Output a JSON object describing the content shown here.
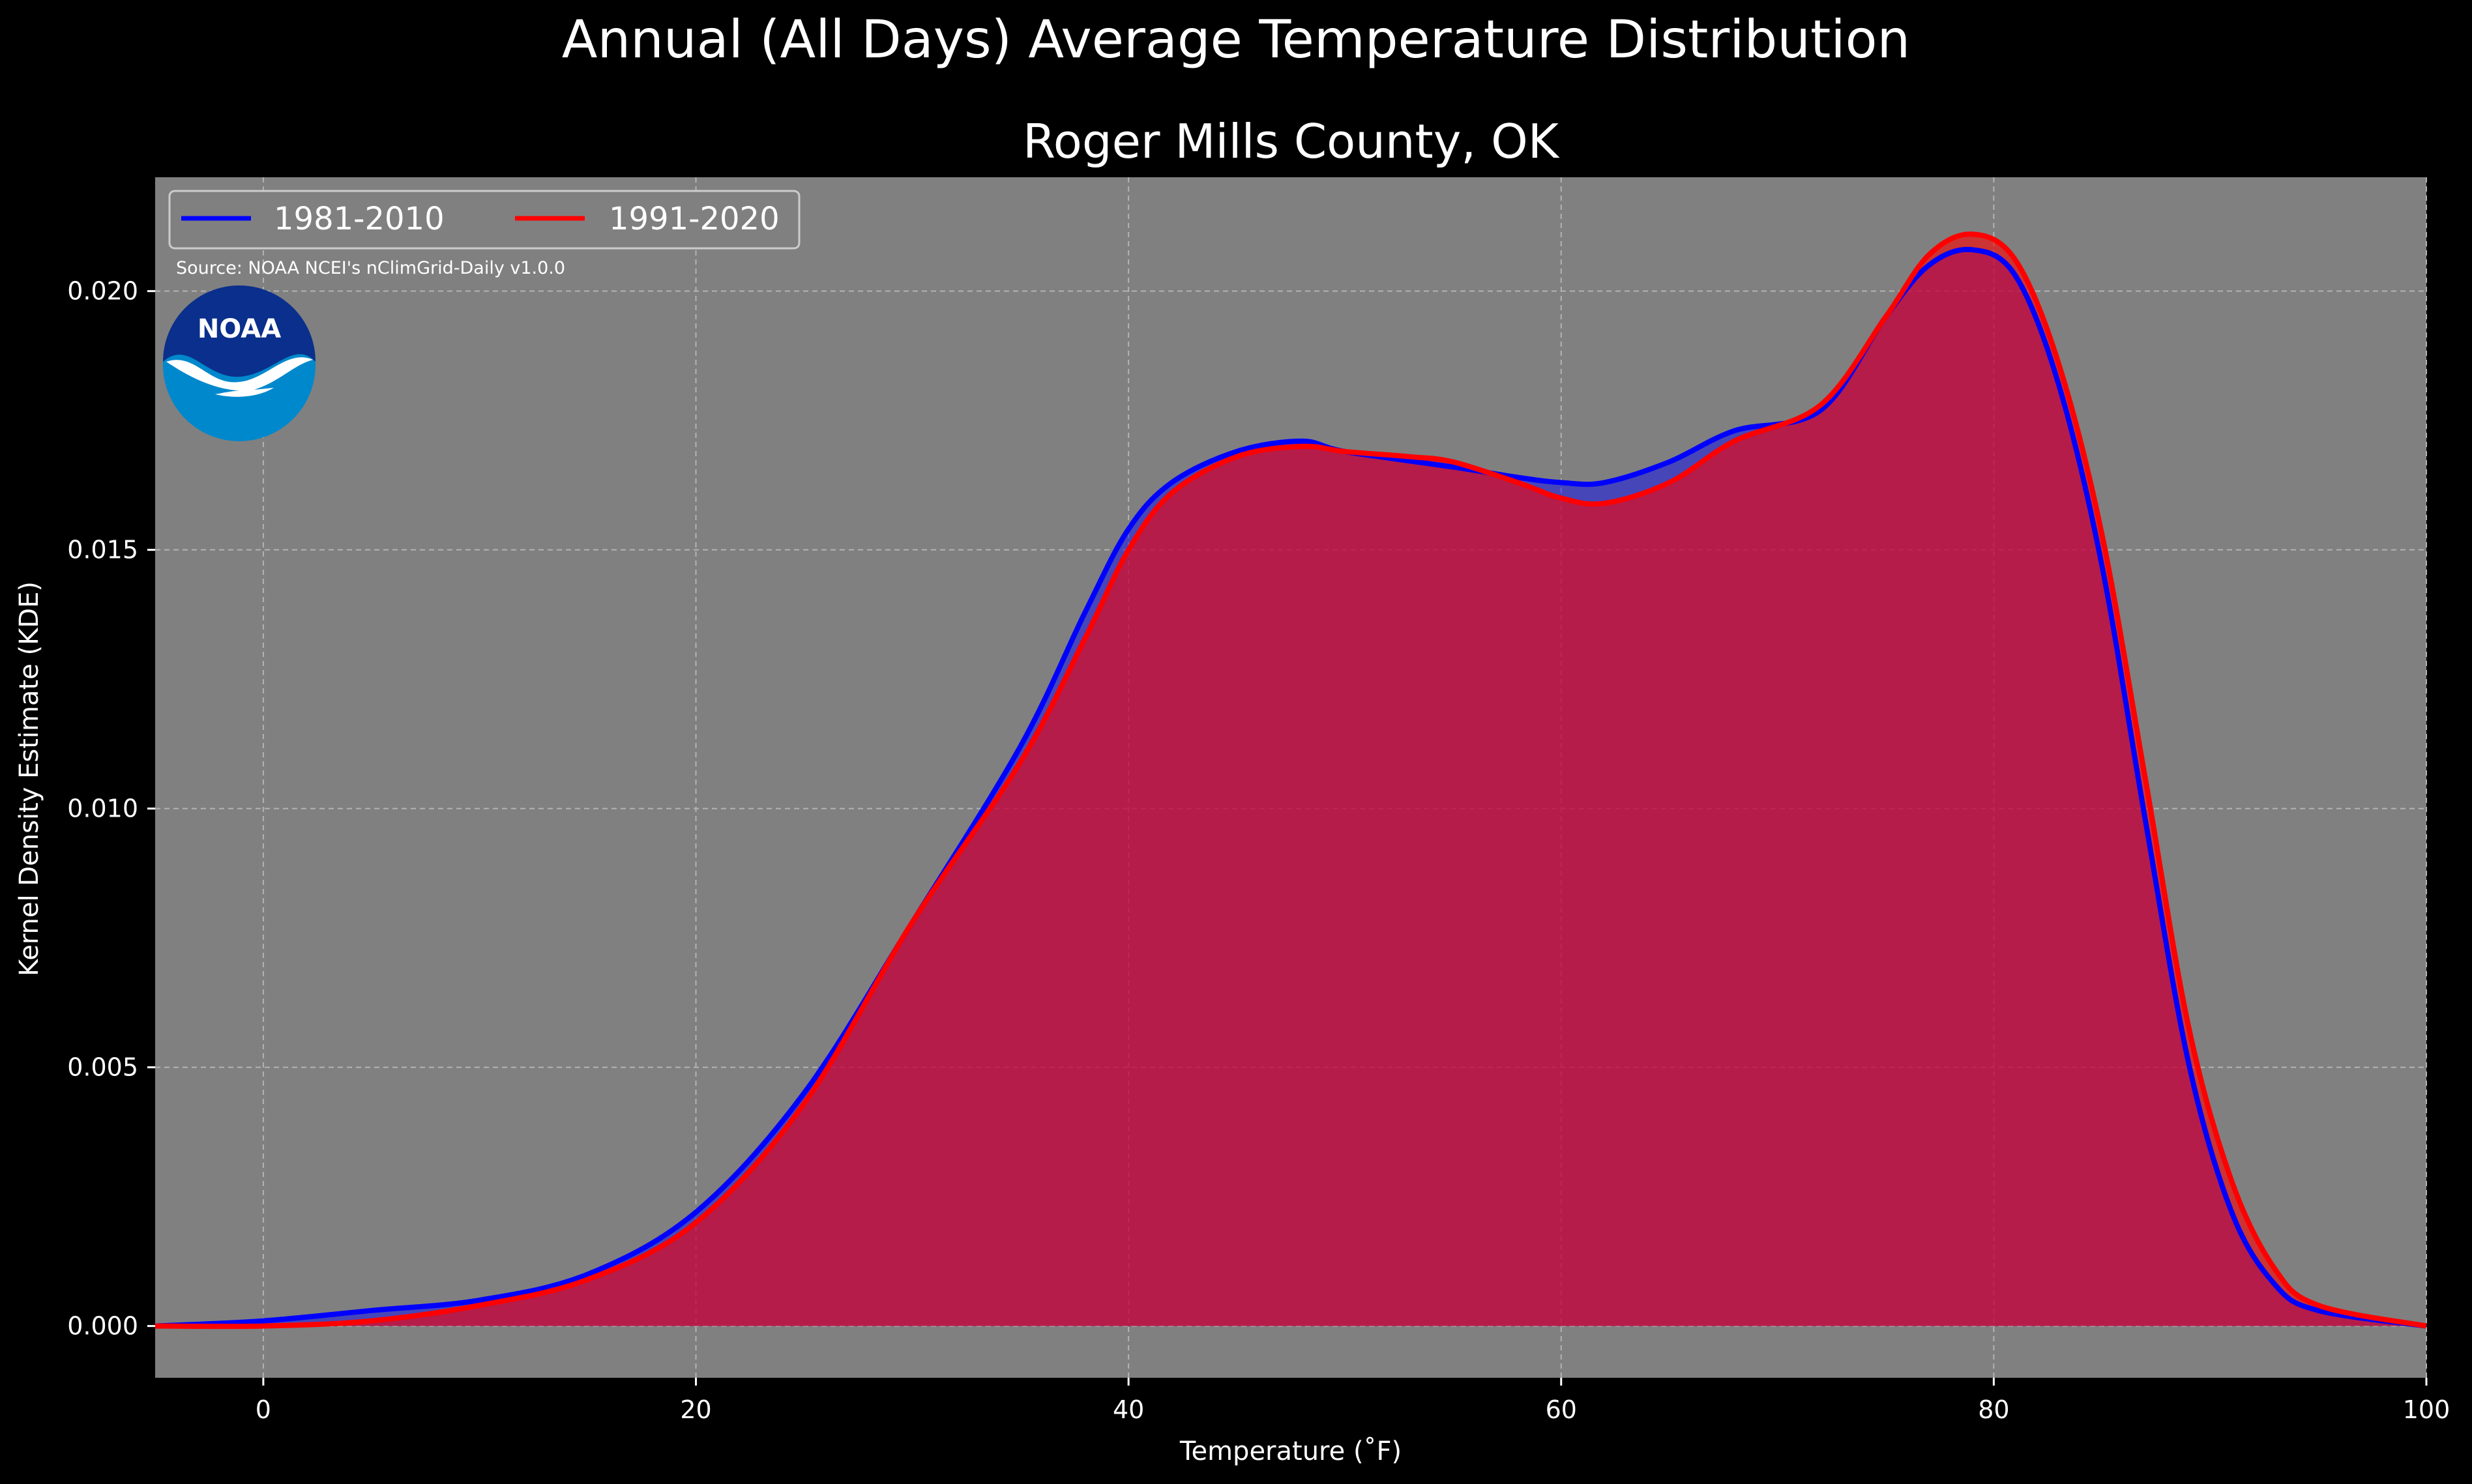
{
  "suptitle": "Annual (All Days) Average Temperature Distribution",
  "title": "Roger Mills County, OK",
  "source": "Source: NOAA NCEI's nClimGrid-Daily v1.0.0",
  "logo_text": "NOAA",
  "colors": {
    "background": "#000000",
    "plot_background": "#808080",
    "grid": "#b3b3b3",
    "series_1981": "#0000ff",
    "series_1991": "#ff0000",
    "fill_1981": "#0000ff",
    "fill_1991": "#ff0000",
    "logo_dark": "#0a2f8c",
    "logo_light": "#0088cc"
  },
  "chart_data": {
    "type": "area",
    "xlabel": "Temperature ($^\\circ$F)",
    "xlabel_display": "Temperature (˚F)",
    "ylabel": "Kernel Density Estimate (KDE)",
    "xlim": [
      -5,
      100
    ],
    "ylim": [
      -0.001,
      0.0222
    ],
    "xticks": [
      0,
      20,
      40,
      60,
      80,
      100
    ],
    "xtick_labels": [
      "0",
      "20",
      "40",
      "60",
      "80",
      "100"
    ],
    "yticks": [
      0.0,
      0.005,
      0.01,
      0.015,
      0.02
    ],
    "ytick_labels": [
      "0.000",
      "0.005",
      "0.010",
      "0.015",
      "0.020"
    ],
    "grid": true,
    "legend_position": "upper-left",
    "series": [
      {
        "name": "1981-2010",
        "color": "#0000ff",
        "x": [
          -5,
          0,
          5,
          10,
          15,
          20,
          25,
          30,
          35,
          38,
          40,
          42,
          45,
          48,
          50,
          55,
          58,
          60,
          62,
          65,
          68,
          72,
          75,
          77,
          79,
          81,
          83,
          85,
          87,
          89,
          91,
          93,
          95,
          100
        ],
        "y": [
          0.0,
          0.0001,
          0.0003,
          0.0005,
          0.001,
          0.0022,
          0.0045,
          0.0078,
          0.0112,
          0.0138,
          0.0154,
          0.0163,
          0.0169,
          0.0171,
          0.0169,
          0.0166,
          0.0164,
          0.0163,
          0.0163,
          0.0167,
          0.0173,
          0.0177,
          0.0195,
          0.0205,
          0.0208,
          0.0203,
          0.0182,
          0.0147,
          0.0098,
          0.0051,
          0.0022,
          0.0008,
          0.0003,
          0.0
        ]
      },
      {
        "name": "1991-2020",
        "color": "#ff0000",
        "x": [
          -5,
          0,
          5,
          10,
          15,
          20,
          25,
          30,
          35,
          38,
          40,
          42,
          45,
          48,
          50,
          53,
          55,
          58,
          60,
          62,
          65,
          68,
          72,
          75,
          77,
          79,
          81,
          83,
          85,
          87,
          89,
          91,
          93,
          95,
          100
        ],
        "y": [
          0.0,
          0.0,
          0.0001,
          0.0004,
          0.0009,
          0.002,
          0.0043,
          0.0078,
          0.0109,
          0.0133,
          0.015,
          0.0161,
          0.0168,
          0.017,
          0.0169,
          0.0168,
          0.0167,
          0.0163,
          0.016,
          0.0159,
          0.0163,
          0.0171,
          0.0178,
          0.0195,
          0.0207,
          0.0211,
          0.0206,
          0.0186,
          0.0153,
          0.0106,
          0.0058,
          0.0028,
          0.0011,
          0.0004,
          0.0
        ]
      }
    ]
  }
}
